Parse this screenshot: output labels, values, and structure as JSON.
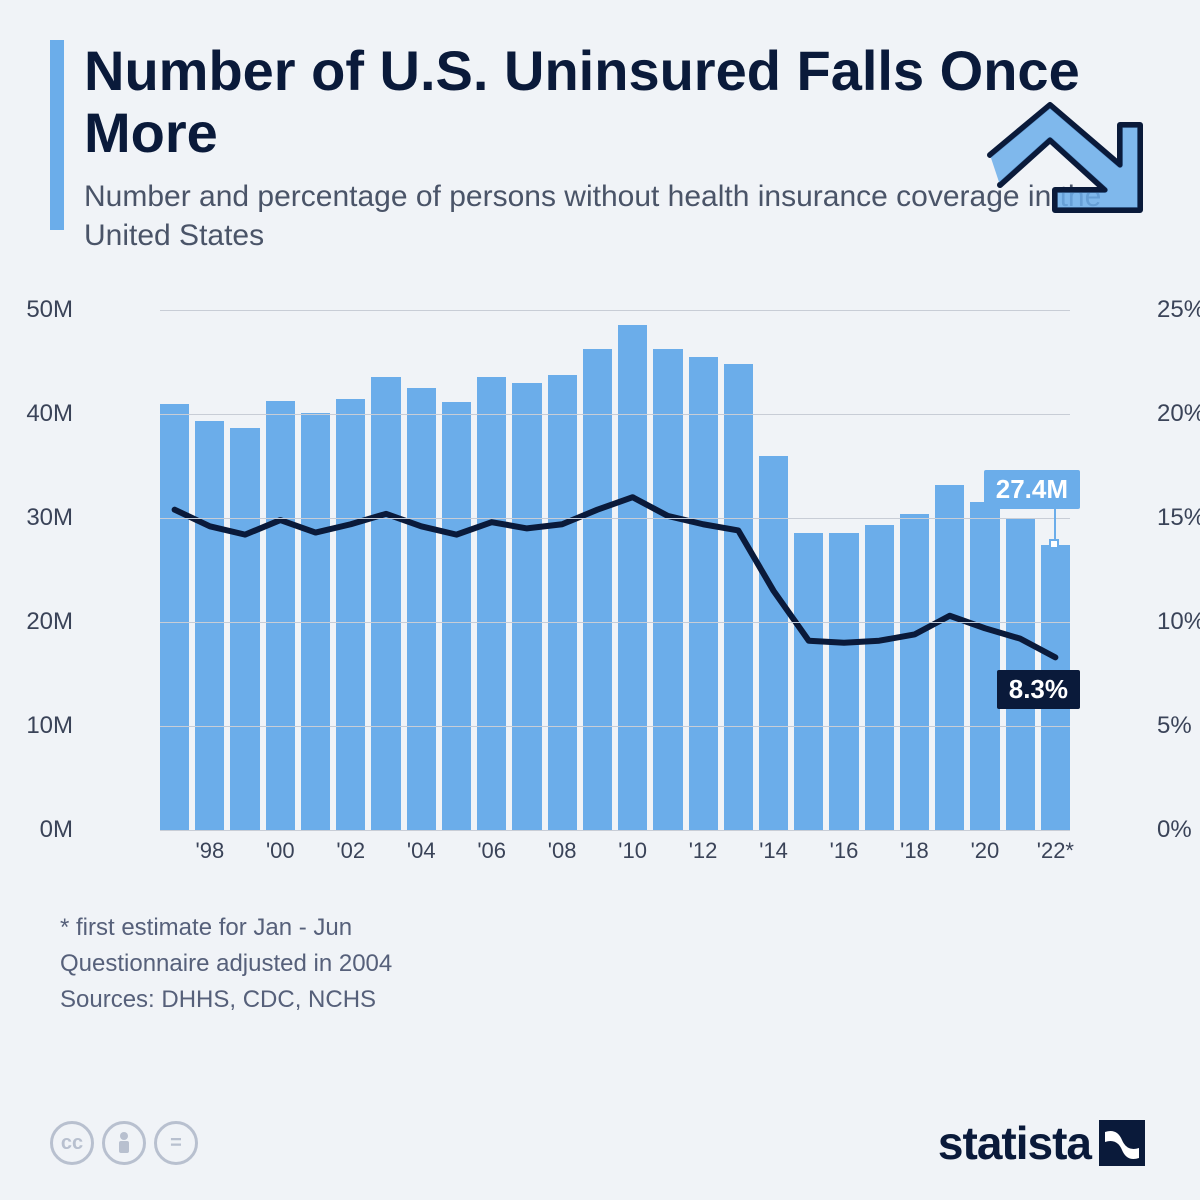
{
  "header": {
    "title": "Number of U.S. Uninsured Falls Once More",
    "subtitle": "Number and percentage of persons without health insurance coverage in the United States"
  },
  "chart": {
    "type": "bar+line",
    "bar_color": "#6badea",
    "line_color": "#0a1a3a",
    "background_color": "#f0f3f7",
    "grid_color": "#c8cdd6",
    "title_color": "#0a1a3a",
    "subtitle_color": "#4a5468",
    "axis_label_color": "#3a4358",
    "axis_fontsize": 24,
    "title_fontsize": 56,
    "subtitle_fontsize": 30,
    "years": [
      1997,
      1998,
      1999,
      2000,
      2001,
      2002,
      2003,
      2004,
      2005,
      2006,
      2007,
      2008,
      2009,
      2010,
      2011,
      2012,
      2013,
      2014,
      2015,
      2016,
      2017,
      2018,
      2019,
      2020,
      2021,
      2022
    ],
    "bar_values_M": [
      41.0,
      39.3,
      38.7,
      41.3,
      40.1,
      41.5,
      43.6,
      42.5,
      41.2,
      43.6,
      43.0,
      43.8,
      46.3,
      48.6,
      46.3,
      45.5,
      44.8,
      36.0,
      28.6,
      28.6,
      29.3,
      30.4,
      33.2,
      31.6,
      30.0,
      27.4
    ],
    "line_values_pct": [
      15.4,
      14.6,
      14.2,
      14.9,
      14.3,
      14.7,
      15.2,
      14.6,
      14.2,
      14.8,
      14.5,
      14.7,
      15.4,
      16.0,
      15.1,
      14.7,
      14.4,
      11.5,
      9.1,
      9.0,
      9.1,
      9.4,
      10.3,
      9.7,
      9.2,
      8.3
    ],
    "left_axis": {
      "min": 0,
      "max": 50,
      "ticks": [
        0,
        10,
        20,
        30,
        40,
        50
      ],
      "suffix": "M"
    },
    "right_axis": {
      "min": 0,
      "max": 25,
      "ticks": [
        0,
        5,
        10,
        15,
        20,
        25
      ],
      "suffix": "%"
    },
    "x_tick_labels": [
      "'98",
      "'00",
      "'02",
      "'04",
      "'06",
      "'08",
      "'10",
      "'12",
      "'14",
      "'16",
      "'18",
      "'20",
      "'22*"
    ],
    "x_tick_year_indices": [
      1,
      3,
      5,
      7,
      9,
      11,
      13,
      15,
      17,
      19,
      21,
      23,
      25
    ],
    "callout_bar": "27.4M",
    "callout_line": "8.3%"
  },
  "footer": {
    "note1": "* first estimate for Jan - Jun",
    "note2": "Questionnaire adjusted in 2004",
    "note3": "Sources: DHHS, CDC, NCHS"
  },
  "branding": {
    "logo_text": "statista"
  }
}
